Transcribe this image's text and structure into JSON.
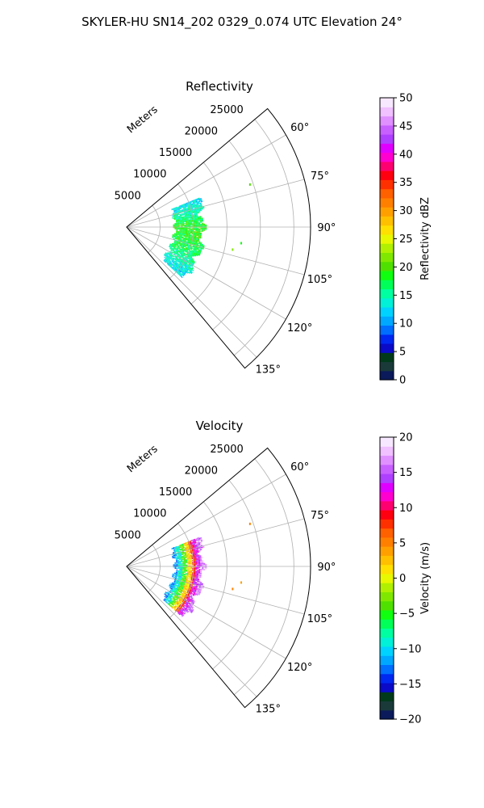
{
  "figure": {
    "suptitle": "SKYLER-HU  SN14_202  0329_0.074 UTC Elevation 24°"
  },
  "chart_data": [
    {
      "type": "heatmap",
      "projection": "polar-sector",
      "title": "Reflectivity",
      "radial_label": "Meters",
      "radial_ticks": [
        "5000",
        "10000",
        "15000",
        "20000",
        "25000"
      ],
      "radial_tick_values": [
        5000,
        10000,
        15000,
        20000,
        25000
      ],
      "rlim": [
        0,
        27500
      ],
      "angular_ticks": [
        "60°",
        "75°",
        "90°",
        "105°",
        "120°",
        "135°"
      ],
      "angular_tick_values": [
        60,
        75,
        90,
        105,
        120,
        135
      ],
      "thetalim": [
        50,
        140
      ],
      "grid": true,
      "colorbar": {
        "label": "Reflectivity dBZ",
        "range": [
          0,
          50
        ],
        "ticks": [
          "0",
          "5",
          "10",
          "15",
          "20",
          "25",
          "30",
          "35",
          "40",
          "45",
          "50"
        ],
        "tick_values": [
          0,
          5,
          10,
          15,
          20,
          25,
          30,
          35,
          40,
          45,
          50
        ],
        "colors": [
          "#0a1a5a",
          "#1a3a3a",
          "#003a1a",
          "#0a0ac8",
          "#0028f0",
          "#006eff",
          "#00a8ff",
          "#00d2ff",
          "#00f0d8",
          "#00ffa0",
          "#00ff58",
          "#10ff10",
          "#50e000",
          "#80e800",
          "#b0f000",
          "#e8f800",
          "#ffe000",
          "#ffc000",
          "#ffa000",
          "#ff8000",
          "#ff6000",
          "#ff3000",
          "#ff0010",
          "#ff0070",
          "#ff00d0",
          "#e000ff",
          "#b040ff",
          "#c860ff",
          "#e090ff",
          "#f0c0ff",
          "#f8e8ff"
        ]
      },
      "data_region": {
        "r_inner": 6700,
        "r_outer": 11900,
        "theta_range": [
          68,
          132
        ],
        "values_by_angle": [
          {
            "theta": 70,
            "dbz": 13
          },
          {
            "theta": 80,
            "dbz": 16
          },
          {
            "theta": 90,
            "dbz": 19
          },
          {
            "theta": 100,
            "dbz": 18
          },
          {
            "theta": 110,
            "dbz": 17
          },
          {
            "theta": 120,
            "dbz": 15
          },
          {
            "theta": 128,
            "dbz": 13
          }
        ],
        "isolated_points": [
          {
            "r": 19500,
            "theta": 71,
            "dbz": 20
          },
          {
            "r": 17300,
            "theta": 98,
            "dbz": 19
          },
          {
            "r": 16200,
            "theta": 102,
            "dbz": 21
          }
        ]
      }
    },
    {
      "type": "heatmap",
      "projection": "polar-sector",
      "title": "Velocity",
      "radial_label": "Meters",
      "radial_ticks": [
        "5000",
        "10000",
        "15000",
        "20000",
        "25000"
      ],
      "radial_tick_values": [
        5000,
        10000,
        15000,
        20000,
        25000
      ],
      "rlim": [
        0,
        27500
      ],
      "angular_ticks": [
        "60°",
        "75°",
        "90°",
        "105°",
        "120°",
        "135°"
      ],
      "angular_tick_values": [
        60,
        75,
        90,
        105,
        120,
        135
      ],
      "thetalim": [
        50,
        140
      ],
      "grid": true,
      "colorbar": {
        "label": "Velocity (m/s)",
        "range": [
          -20,
          20
        ],
        "ticks": [
          "−20",
          "−15",
          "−10",
          "−5",
          "0",
          "5",
          "10",
          "15",
          "20"
        ],
        "tick_values": [
          -20,
          -15,
          -10,
          -5,
          0,
          5,
          10,
          15,
          20
        ],
        "colors": [
          "#0a1a5a",
          "#1a3a3a",
          "#003a1a",
          "#0a0ac8",
          "#0028f0",
          "#006eff",
          "#00a8ff",
          "#00d2ff",
          "#00f0d8",
          "#00ffa0",
          "#00ff58",
          "#10ff10",
          "#50e000",
          "#80e800",
          "#b0f000",
          "#e8f800",
          "#ffe000",
          "#ffc000",
          "#ffa000",
          "#ff8000",
          "#ff6000",
          "#ff3000",
          "#ff0010",
          "#ff0070",
          "#ff00d0",
          "#e000ff",
          "#b040ff",
          "#c860ff",
          "#e090ff",
          "#f0c0ff",
          "#f8e8ff"
        ]
      },
      "data_region": {
        "r_inner": 6700,
        "r_outer": 11900,
        "theta_range": [
          68,
          132
        ],
        "radial_bands": [
          {
            "r": [
              6700,
              7600
            ],
            "ms": -12
          },
          {
            "r": [
              7600,
              8300
            ],
            "ms": -9
          },
          {
            "r": [
              8300,
              8900
            ],
            "ms": -4
          },
          {
            "r": [
              8900,
              9600
            ],
            "ms": 2
          },
          {
            "r": [
              9600,
              10300
            ],
            "ms": 8
          },
          {
            "r": [
              10300,
              11000
            ],
            "ms": 13
          },
          {
            "r": [
              11000,
              11900
            ],
            "ms": 16
          }
        ],
        "isolated_points": [
          {
            "r": 19500,
            "theta": 71,
            "ms": 5
          },
          {
            "r": 17300,
            "theta": 98,
            "ms": 4
          },
          {
            "r": 16200,
            "theta": 102,
            "ms": 5
          }
        ]
      }
    }
  ]
}
